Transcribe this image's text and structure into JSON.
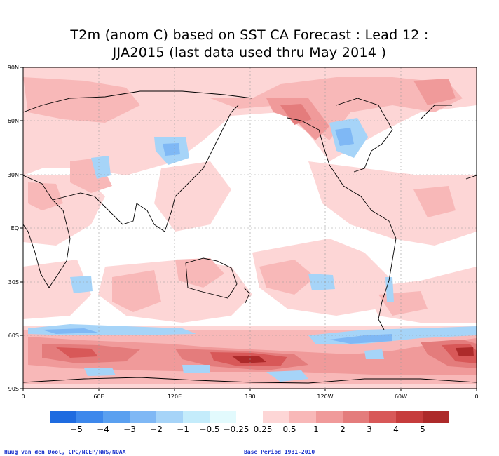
{
  "title": {
    "line1": "T2m (anom C) based on SST CA Forecast : Lead 12 :",
    "line2": "JJA2015 (last data used thru May 2014 )"
  },
  "map": {
    "lat_labels": [
      "90N",
      "60N",
      "30N",
      "EQ",
      "30S",
      "60S",
      "90S"
    ],
    "lon_labels": [
      "0",
      "60E",
      "120E",
      "180",
      "120W",
      "60W",
      "0"
    ]
  },
  "legend": {
    "labels": [
      "−5",
      "−4",
      "−3",
      "−2",
      "−1",
      "−0.5",
      "−0.25",
      "0.25",
      "0.5",
      "1",
      "2",
      "3",
      "4",
      "5"
    ],
    "colors": [
      "#1e6be0",
      "#3d88ec",
      "#5aa0f0",
      "#7fb8f5",
      "#a6d4f8",
      "#c4ecfb",
      "#e2fafd",
      "#ffffff",
      "#fdd6d6",
      "#f8b8b8",
      "#f09a9a",
      "#e47c7c",
      "#d85858",
      "#c63c3c",
      "#ad2a2a"
    ]
  },
  "credits": {
    "left": "Huug van den Dool, CPC/NCEP/NWS/NOAA",
    "right": "Base Period 1981-2010"
  }
}
